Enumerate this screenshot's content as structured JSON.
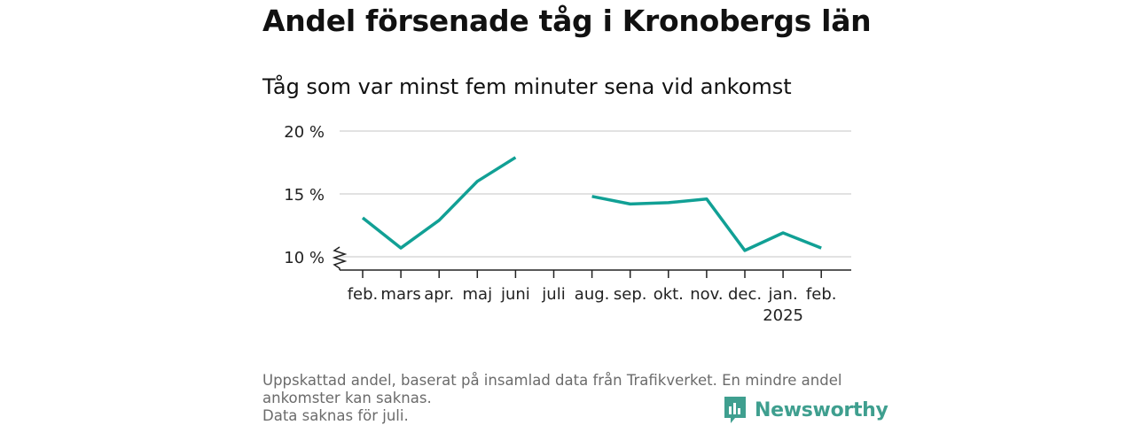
{
  "title": "Andel försenade tåg i Kronobergs län",
  "subtitle": "Tåg som var minst fem minuter sena vid ankomst",
  "footer": {
    "line1": "Uppskattad andel, baserat på insamlad data från Trafikverket. En mindre andel",
    "line2": "ankomster kan saknas.",
    "line3": "Data saknas för juli."
  },
  "brand": {
    "name": "Newsworthy",
    "icon": "newsworthy-logo-icon",
    "color": "#3f9f8f"
  },
  "chart_data": {
    "type": "line",
    "categories": [
      "feb.",
      "mars",
      "apr.",
      "maj",
      "juni",
      "juli",
      "aug.",
      "sep.",
      "okt.",
      "nov.",
      "dec.",
      "jan.",
      "feb."
    ],
    "category_sublabels": [
      "",
      "",
      "",
      "",
      "",
      "",
      "",
      "",
      "",
      "",
      "",
      "2025",
      ""
    ],
    "series": [
      {
        "values": [
          13.1,
          10.7,
          12.9,
          16.0,
          17.9,
          null,
          14.8,
          14.2,
          14.3,
          14.6,
          10.5,
          11.9,
          10.7
        ],
        "color": "#11a095"
      }
    ],
    "ylim": [
      9,
      20
    ],
    "yticks": [
      10,
      15,
      20
    ],
    "ytick_labels": [
      "10 %",
      "15 %",
      "20 %"
    ],
    "axis_break": true,
    "grid": true
  }
}
